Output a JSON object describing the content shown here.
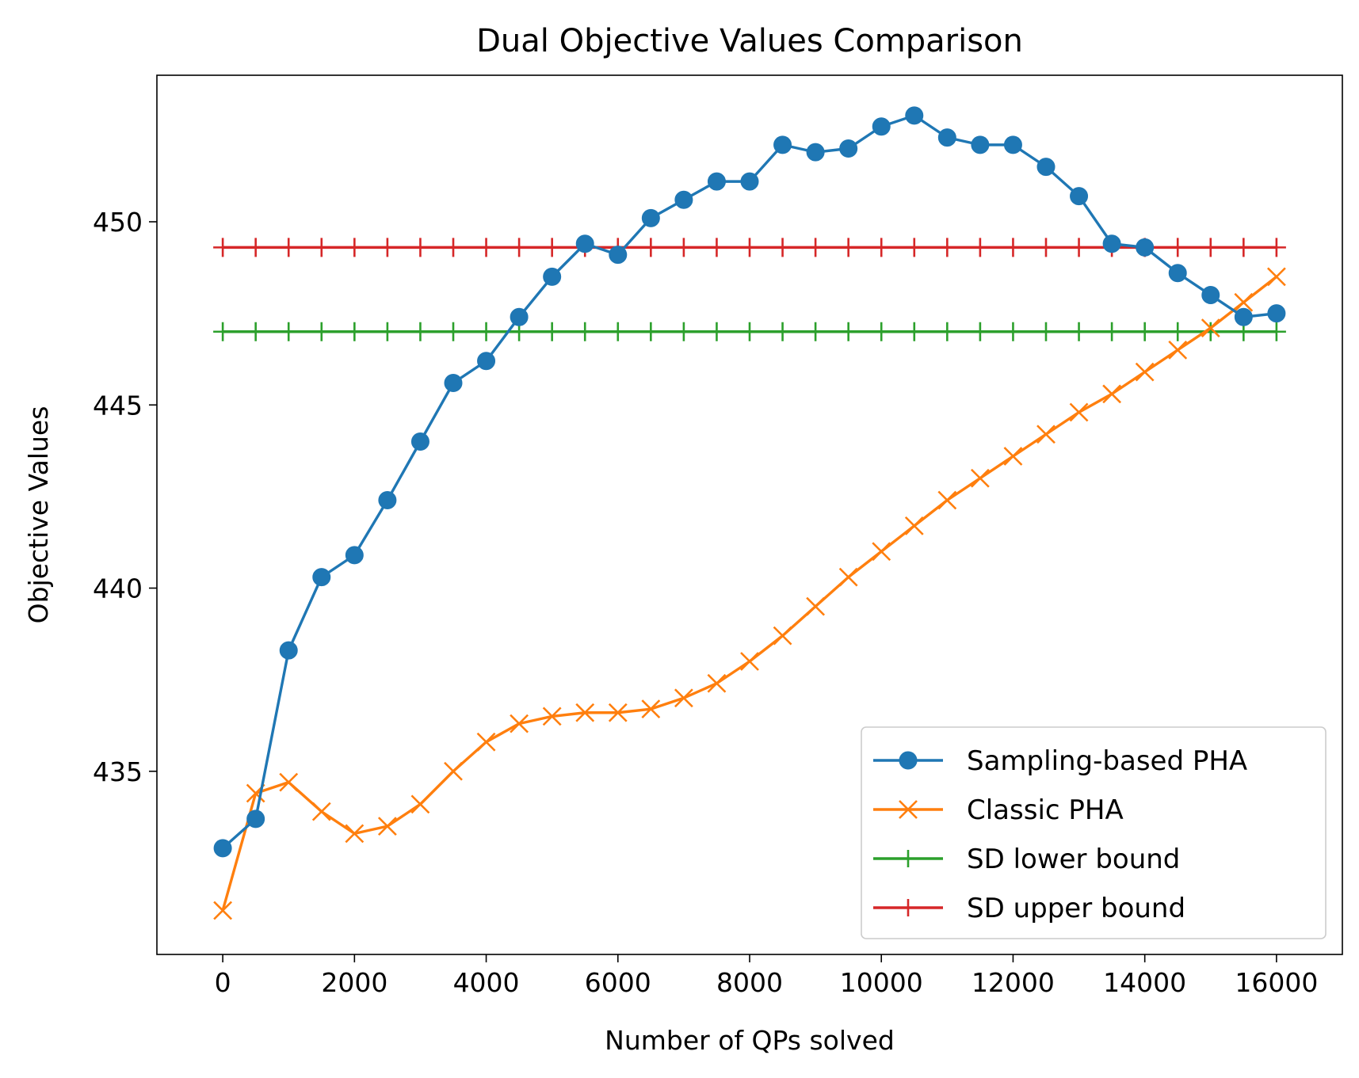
{
  "chart_data": {
    "type": "line",
    "title": "Dual Objective Values Comparison",
    "xlabel": "Number of QPs solved",
    "ylabel": "Objective Values",
    "xlim": [
      -1000,
      17000
    ],
    "ylim": [
      430.0,
      454.0
    ],
    "xticks": [
      0,
      2000,
      4000,
      6000,
      8000,
      10000,
      12000,
      14000,
      16000
    ],
    "yticks": [
      435,
      440,
      445,
      450
    ],
    "grid": false,
    "legend_position": "lower-right",
    "x": [
      0,
      500,
      1000,
      1500,
      2000,
      2500,
      3000,
      3500,
      4000,
      4500,
      5000,
      5500,
      6000,
      6500,
      7000,
      7500,
      8000,
      8500,
      9000,
      9500,
      10000,
      10500,
      11000,
      11500,
      12000,
      12500,
      13000,
      13500,
      14000,
      14500,
      15000,
      15500,
      16000
    ],
    "series": [
      {
        "name": "Sampling-based PHA",
        "color": "#1f77b4",
        "marker": "circle",
        "values": [
          432.9,
          433.7,
          438.3,
          440.3,
          440.9,
          442.4,
          444.0,
          445.6,
          446.2,
          447.4,
          448.5,
          449.4,
          449.1,
          450.1,
          450.6,
          451.1,
          451.1,
          452.1,
          451.9,
          452.0,
          452.6,
          452.9,
          452.3,
          452.1,
          452.1,
          451.5,
          450.7,
          449.4,
          449.3,
          448.6,
          448.0,
          447.4,
          447.5
        ]
      },
      {
        "name": "Classic PHA",
        "color": "#ff7f0e",
        "marker": "x",
        "values": [
          431.2,
          434.4,
          434.7,
          433.9,
          433.3,
          433.5,
          434.1,
          435.0,
          435.8,
          436.3,
          436.5,
          436.6,
          436.6,
          436.7,
          437.0,
          437.4,
          438.0,
          438.7,
          439.5,
          440.3,
          441.0,
          441.7,
          442.4,
          443.0,
          443.6,
          444.2,
          444.8,
          445.3,
          445.9,
          446.5,
          447.1,
          447.8,
          448.5
        ]
      },
      {
        "name": "SD lower bound",
        "color": "#2ca02c",
        "marker": "plus",
        "values": [
          447.0,
          447.0,
          447.0,
          447.0,
          447.0,
          447.0,
          447.0,
          447.0,
          447.0,
          447.0,
          447.0,
          447.0,
          447.0,
          447.0,
          447.0,
          447.0,
          447.0,
          447.0,
          447.0,
          447.0,
          447.0,
          447.0,
          447.0,
          447.0,
          447.0,
          447.0,
          447.0,
          447.0,
          447.0,
          447.0,
          447.0,
          447.0,
          447.0
        ]
      },
      {
        "name": "SD upper bound",
        "color": "#d62728",
        "marker": "plus",
        "values": [
          449.3,
          449.3,
          449.3,
          449.3,
          449.3,
          449.3,
          449.3,
          449.3,
          449.3,
          449.3,
          449.3,
          449.3,
          449.3,
          449.3,
          449.3,
          449.3,
          449.3,
          449.3,
          449.3,
          449.3,
          449.3,
          449.3,
          449.3,
          449.3,
          449.3,
          449.3,
          449.3,
          449.3,
          449.3,
          449.3,
          449.3,
          449.3,
          449.3
        ]
      }
    ]
  }
}
